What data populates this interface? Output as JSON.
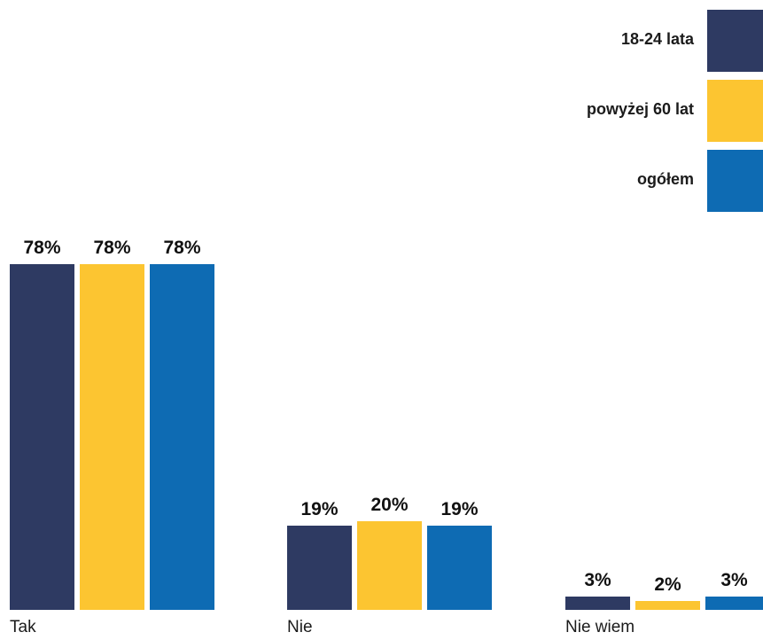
{
  "chart_data": {
    "type": "bar",
    "categories": [
      "Tak",
      "Nie",
      "Nie wiem"
    ],
    "series": [
      {
        "name": "18-24 lata",
        "values": [
          78,
          19,
          3
        ],
        "labels": [
          "78%",
          "19%",
          "3%"
        ],
        "color": "#2e3a62"
      },
      {
        "name": "powyżej 60 lat",
        "values": [
          78,
          20,
          2
        ],
        "labels": [
          "78%",
          "20%",
          "2%"
        ],
        "color": "#fcc531"
      },
      {
        "name": "ogółem",
        "values": [
          78,
          19,
          3
        ],
        "labels": [
          "78%",
          "19%",
          "3%"
        ],
        "color": "#0e6bb3"
      }
    ],
    "unit": "%",
    "ylim": [
      0,
      100
    ],
    "grid": false,
    "legend_position": "top-right"
  }
}
